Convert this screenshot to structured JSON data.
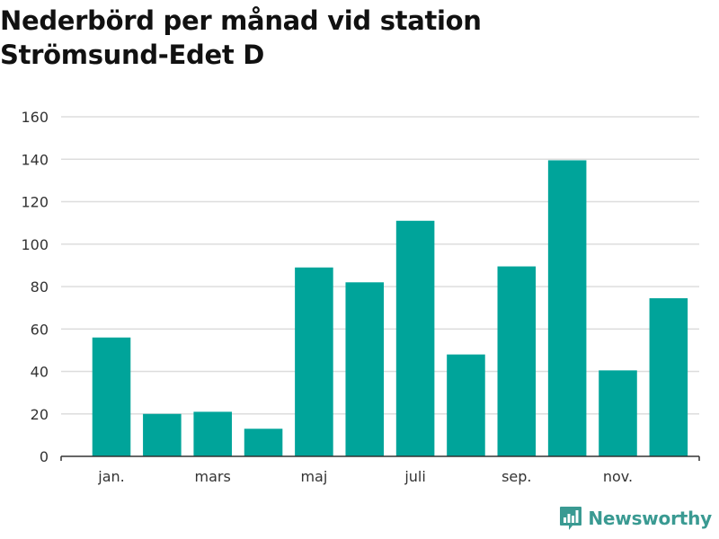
{
  "chart_data": {
    "type": "bar",
    "title_lines": [
      "Nederbörd per månad vid station",
      "Strömsund-Edet D"
    ],
    "categories": [
      "jan.",
      "feb.",
      "mars",
      "apr.",
      "maj",
      "juni",
      "juli",
      "aug.",
      "sep.",
      "okt.",
      "nov.",
      "dec."
    ],
    "visible_tick_labels": [
      "jan.",
      "mars",
      "maj",
      "juli",
      "sep.",
      "nov."
    ],
    "values": [
      56,
      20,
      21,
      13,
      89,
      82,
      111,
      48,
      89.5,
      139.5,
      40.5,
      74.5
    ],
    "ylim": [
      0,
      160
    ],
    "yticks": [
      0,
      20,
      40,
      60,
      80,
      100,
      120,
      140,
      160
    ],
    "grid": true,
    "xlabel": "",
    "ylabel": "",
    "bar_color": "#00a49a"
  },
  "brand": {
    "name": "Newsworthy",
    "color": "#3a9a92"
  }
}
